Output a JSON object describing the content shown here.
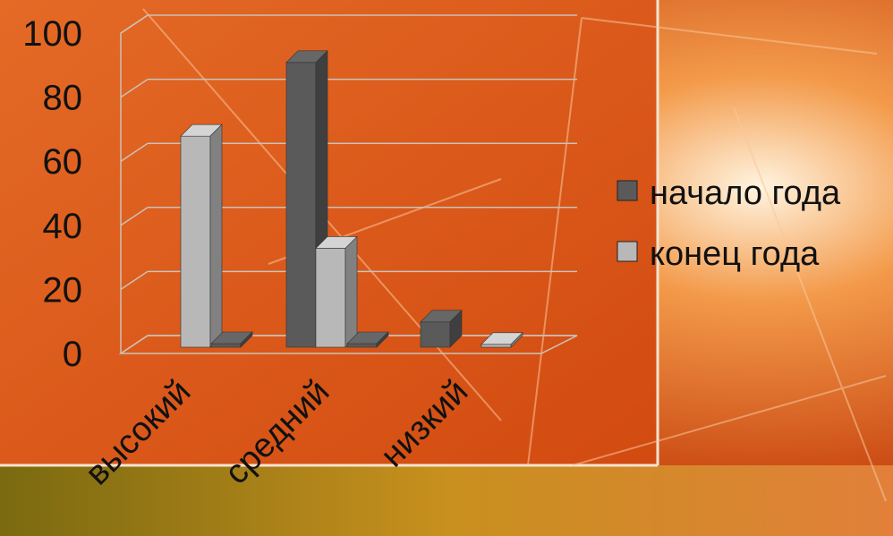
{
  "colors": {
    "panel": "#d8561a",
    "series_start": "#5a5a5a",
    "series_end": "#b8b8b8",
    "gridline": "#c9c2b8"
  },
  "chart_data": {
    "type": "bar",
    "title": "",
    "xlabel": "",
    "ylabel": "",
    "ylim": [
      0,
      100
    ],
    "yticks": [
      "0",
      "20",
      "40",
      "60",
      "80",
      "100"
    ],
    "categories": [
      "высокий",
      "средний",
      "низкий"
    ],
    "series": [
      {
        "name": "начало года",
        "values": [
          0,
          90,
          9
        ]
      },
      {
        "name": "конец года",
        "values": [
          67,
          32,
          2
        ]
      }
    ],
    "grid": true,
    "legend": "right",
    "three_d": true
  }
}
